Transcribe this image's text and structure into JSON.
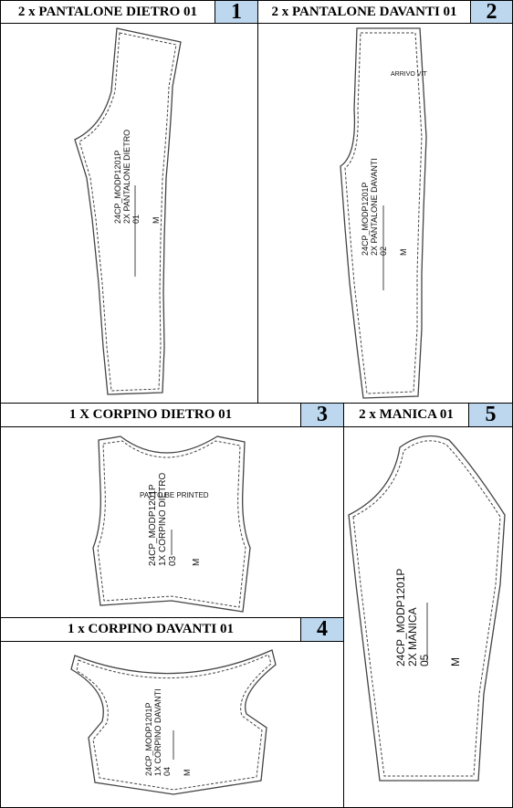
{
  "sections": [
    {
      "title": "2 x PANTALONE DIETRO 01",
      "number": "1",
      "code": "24CP_MODP1201P",
      "desc": "2X PANTALONE DIETRO",
      "piece_no": "01",
      "size": "M"
    },
    {
      "title": "2 x PANTALONE DAVANTI 01",
      "number": "2",
      "code": "24CP_MODP1201P",
      "desc": "2X PANTALONE DAVANTI",
      "piece_no": "02",
      "size": "M",
      "note": "ARRIVO VIT"
    },
    {
      "title": "1 X CORPINO DIETRO 01",
      "number": "3",
      "code": "24CP_MODP1201P",
      "desc": "1X CORPINO DIETRO",
      "piece_no": "03",
      "size": "M",
      "note": "PATTO BE PRINTED"
    },
    {
      "title": "1 x CORPINO DAVANTI 01",
      "number": "4",
      "code": "24CP_MODP1201P",
      "desc": "1X CORPINO DAVANTI",
      "piece_no": "04",
      "size": "M"
    },
    {
      "title": "2 x MANICA 01",
      "number": "5",
      "code": "24CP_MODP1201P",
      "desc": "2X MANICA",
      "piece_no": "05",
      "size": "M"
    }
  ]
}
